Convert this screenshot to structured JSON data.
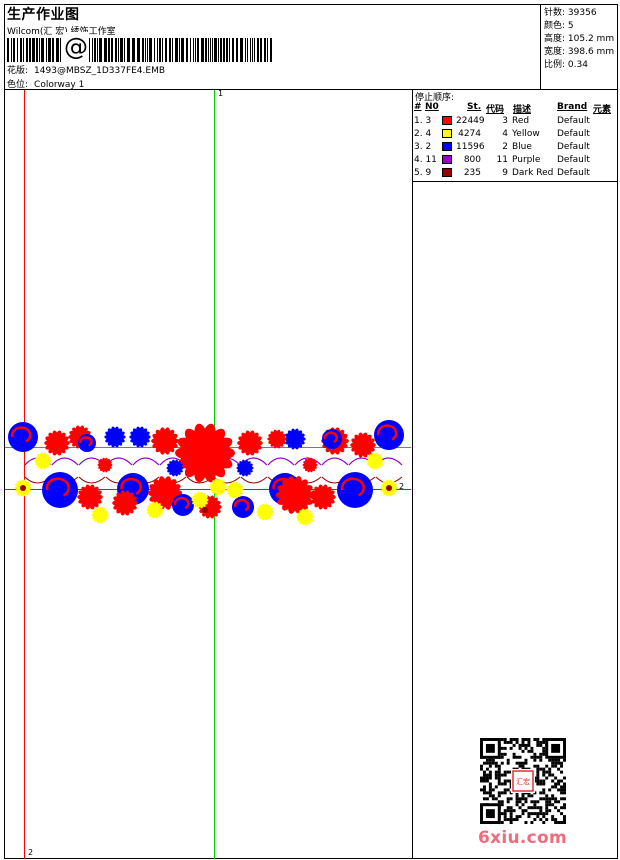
{
  "header": {
    "title": "生产作业图",
    "company": "Wilcom(汇 宏) 绣饰工作室",
    "design_label": "花版:",
    "design_file": "1493@MBSZ_1D337FE4.EMB",
    "colorway_label": "色位:",
    "colorway": "Colorway 1",
    "barcode_glyph": "@"
  },
  "stats": [
    {
      "label": "针数:",
      "value": "39356"
    },
    {
      "label": "颜色:",
      "value": "5"
    },
    {
      "label": "高度:",
      "value": "105.2 mm"
    },
    {
      "label": "宽度:",
      "value": "398.6 mm"
    },
    {
      "label": "比例:",
      "value": "0.34"
    }
  ],
  "sequence": {
    "title": "停止顺序:",
    "headers": {
      "hash": "#",
      "no": "N0",
      "st": "St.",
      "code": "代码",
      "desc": "描述",
      "brand": "Brand",
      "element": "元素"
    },
    "rows": [
      {
        "seq": "1. 3",
        "color": "#ff0000",
        "stitches": "22449",
        "code": "3",
        "desc": "Red",
        "brand": "Default"
      },
      {
        "seq": "2. 4",
        "color": "#ffff00",
        "stitches": "4274",
        "code": "4",
        "desc": "Yellow",
        "brand": "Default"
      },
      {
        "seq": "3. 2",
        "color": "#0000ff",
        "stitches": "11596",
        "code": "2",
        "desc": "Blue",
        "brand": "Default"
      },
      {
        "seq": "4. 11",
        "color": "#9900cc",
        "stitches": "800",
        "code": "11",
        "desc": "Purple",
        "brand": "Default"
      },
      {
        "seq": "5. 9",
        "color": "#990000",
        "stitches": "235",
        "code": "9",
        "desc": "Dark Red",
        "brand": "Default"
      }
    ]
  },
  "guides": {
    "top_marker": "1",
    "right_marker": "2",
    "bottom_marker": "2"
  },
  "watermark": "6xiu.com",
  "qr_stamp_text": "汇宏"
}
